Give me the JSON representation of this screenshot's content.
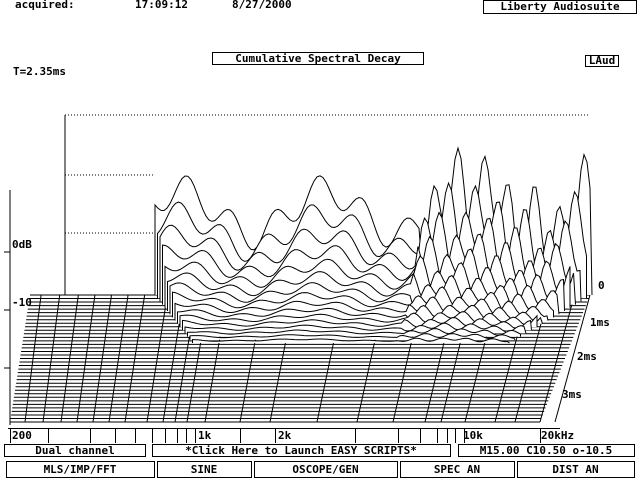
{
  "header": {
    "acquired_label": "acquired:",
    "time": "17:09:12",
    "date": "8/27/2000",
    "app_name": "Liberty Audiosuite"
  },
  "plot": {
    "title": "Cumulative Spectral Decay",
    "badge": "LAud",
    "window": "T=2.35ms",
    "y_labels": [
      "0dB",
      "-10"
    ],
    "time_labels": [
      "0",
      "1ms",
      "2ms",
      "3ms"
    ],
    "x_labels": [
      "200",
      "1k",
      "2k",
      "10k",
      "20kHz"
    ]
  },
  "status": {
    "channel": "Dual channel",
    "scripts": "*Click Here to Launch EASY SCRIPTS*",
    "settings": "M15.00 C10.50 o-10.5"
  },
  "buttons": [
    "MLS/IMP/FFT",
    "SINE",
    "OSCOPE/GEN",
    "SPEC AN",
    "DIST AN"
  ]
}
